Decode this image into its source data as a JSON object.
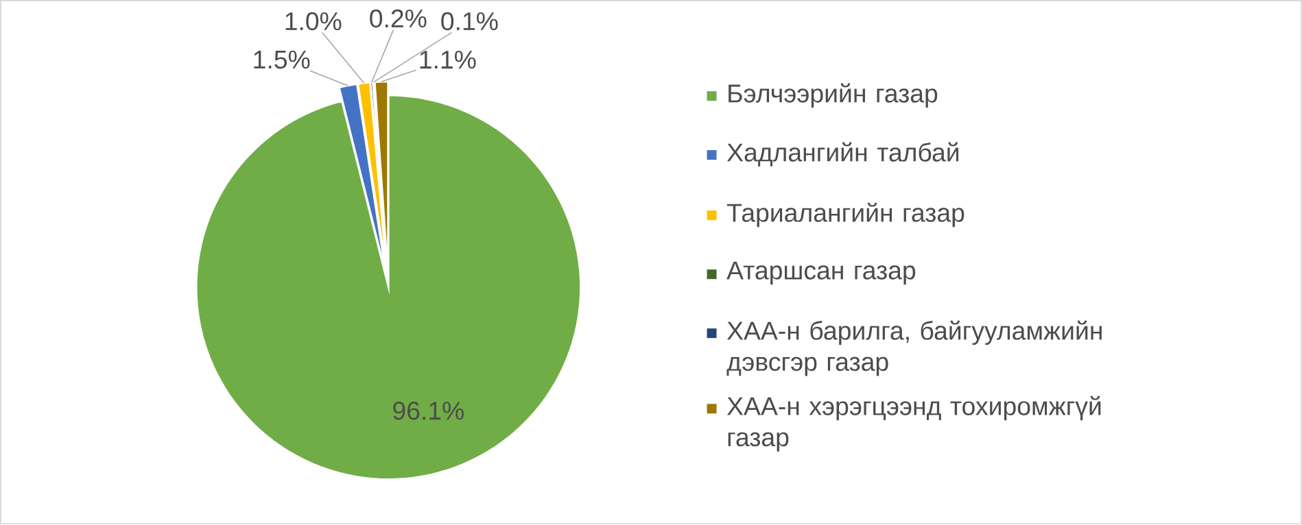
{
  "chart_data": {
    "type": "pie",
    "categories": [
      "Бэлчээрийн газар",
      "Хадлангийн талбай",
      "Тариалангийн  газар",
      "Атаршсан газар",
      "ХАА-н барилга, байгууламжийн дэвсгэр газар",
      "ХАА-н хэрэгцээнд тохиромжгүй газар"
    ],
    "values": [
      96.1,
      1.5,
      1.0,
      0.2,
      0.1,
      1.1
    ],
    "colors": [
      "#70ad47",
      "#4472c4",
      "#ffc000",
      "#43682b",
      "#264478",
      "#9e7800"
    ],
    "value_labels": [
      "96.1%",
      "1.5%",
      "1.0%",
      "0.2%",
      "0.1%",
      "1.1%"
    ],
    "legend": "right"
  }
}
